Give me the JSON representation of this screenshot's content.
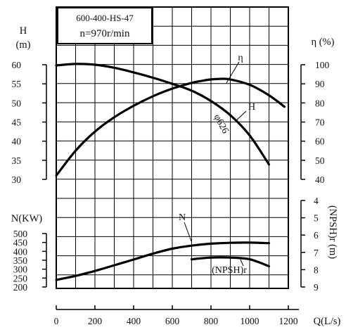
{
  "chart_data": {
    "type": "line",
    "panel": {
      "model": "600-400-HS-47",
      "speed": "n=970r/min"
    },
    "x_axis": {
      "label": "Q(L/s)",
      "range": [
        0,
        1200
      ],
      "ticks": [
        "0",
        "200",
        "400",
        "600",
        "800",
        "1000",
        "1200"
      ]
    },
    "left_axes": {
      "head": {
        "label_top": "H",
        "label_unit": "(m)",
        "range": [
          30,
          60
        ],
        "ticks": [
          "60",
          "55",
          "50",
          "45",
          "40",
          "35",
          "30"
        ]
      },
      "power": {
        "label": "N(KW)",
        "range": [
          200,
          500
        ],
        "ticks": [
          "500",
          "450",
          "400",
          "350",
          "300",
          "250",
          "200"
        ]
      }
    },
    "right_axes": {
      "efficiency": {
        "label": "η (%)",
        "range": [
          40,
          100
        ],
        "ticks": [
          "100",
          "90",
          "80",
          "70",
          "60",
          "50",
          "40"
        ]
      },
      "npsh": {
        "label": "(NPSH)r (m)",
        "range": [
          4,
          9
        ],
        "inverted": true,
        "ticks": [
          "4",
          "5",
          "6",
          "7",
          "8",
          "9"
        ]
      }
    },
    "series": [
      {
        "name": "H",
        "axis": "head",
        "annotation": "φ626",
        "x": [
          0,
          100,
          200,
          300,
          400,
          500,
          600,
          700,
          800,
          900,
          1000,
          1100
        ],
        "values": [
          59.8,
          60.2,
          60.0,
          59.2,
          58.0,
          56.6,
          55.0,
          53.2,
          50.5,
          46.8,
          41.5,
          33.9
        ]
      },
      {
        "name": "η",
        "axis": "efficiency",
        "x": [
          0,
          100,
          200,
          300,
          400,
          500,
          600,
          700,
          750,
          800,
          850,
          900,
          1000,
          1100,
          1180
        ],
        "values": [
          42,
          55,
          65,
          72.5,
          78.5,
          83.5,
          87.5,
          90.5,
          91.5,
          92.3,
          92.6,
          92.3,
          89.5,
          84,
          78
        ]
      },
      {
        "name": "N",
        "axis": "power",
        "x": [
          0,
          100,
          200,
          300,
          400,
          500,
          600,
          700,
          800,
          900,
          1000,
          1100
        ],
        "values": [
          240,
          262,
          290,
          322,
          354,
          387,
          415,
          432,
          443,
          448,
          449,
          446
        ]
      },
      {
        "name": "(NPSH)r",
        "axis": "npsh",
        "x": [
          700,
          800,
          900,
          1000,
          1100
        ],
        "values": [
          7.4,
          7.3,
          7.3,
          7.4,
          7.8
        ]
      }
    ],
    "grid": true
  }
}
